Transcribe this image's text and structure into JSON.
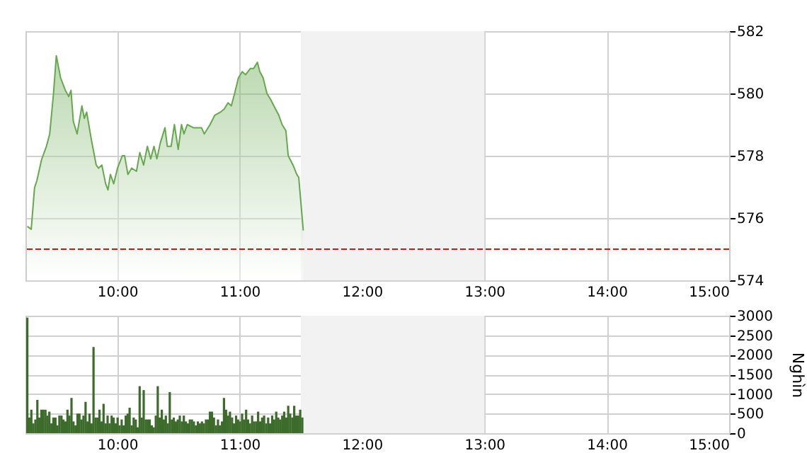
{
  "chart_data": [
    {
      "type": "area",
      "color": "#66a84e",
      "x": [
        9.265,
        9.297,
        9.324,
        9.343,
        9.382,
        9.421,
        9.448,
        9.479,
        9.502,
        9.537,
        9.576,
        9.603,
        9.622,
        9.641,
        9.672,
        9.711,
        9.731,
        9.75,
        9.789,
        9.828,
        9.847,
        9.874,
        9.905,
        9.924,
        9.944,
        9.971,
        10.002,
        10.041,
        10.06,
        10.087,
        10.118,
        10.157,
        10.184,
        10.215,
        10.246,
        10.273,
        10.3,
        10.324,
        10.351,
        10.39,
        10.409,
        10.44,
        10.467,
        10.498,
        10.525,
        10.545,
        10.572,
        10.622,
        10.661,
        10.688,
        10.711,
        10.758,
        10.797,
        10.843,
        10.874,
        10.905,
        10.932,
        10.959,
        10.99,
        11.021,
        11.048,
        11.087,
        11.114,
        11.145,
        11.165,
        11.192,
        11.223,
        11.254,
        11.293,
        11.32,
        11.347,
        11.378,
        11.397,
        11.436,
        11.467,
        11.483,
        11.52
      ],
      "values": [
        575.73,
        575.64,
        576.97,
        577.2,
        577.88,
        578.3,
        578.7,
        580.0,
        581.21,
        580.5,
        580.1,
        579.9,
        580.1,
        579.1,
        578.7,
        579.6,
        579.2,
        579.4,
        578.5,
        577.7,
        577.6,
        577.7,
        577.1,
        576.9,
        577.4,
        577.1,
        577.6,
        578.0,
        578.0,
        577.4,
        577.6,
        577.5,
        578.1,
        577.7,
        578.3,
        577.9,
        578.3,
        577.9,
        578.4,
        578.9,
        578.3,
        578.3,
        579.0,
        578.2,
        579.0,
        578.7,
        579.0,
        578.9,
        578.9,
        578.9,
        578.7,
        579.0,
        579.3,
        579.4,
        579.5,
        579.7,
        579.6,
        580.0,
        580.5,
        580.7,
        580.6,
        580.8,
        580.8,
        581.0,
        580.7,
        580.5,
        580.0,
        579.8,
        579.5,
        579.3,
        579.0,
        578.8,
        578.0,
        577.7,
        577.4,
        577.3,
        575.6
      ],
      "xlim": [
        9.25,
        15
      ],
      "xticks": [
        {
          "value": 10,
          "label": "10:00"
        },
        {
          "value": 11,
          "label": "11:00"
        },
        {
          "value": 12,
          "label": "12:00"
        },
        {
          "value": 13,
          "label": "13:00"
        },
        {
          "value": 14,
          "label": "14:00"
        },
        {
          "value": 15,
          "label": "15:00"
        }
      ],
      "ylim": [
        574,
        582
      ],
      "yticks": [
        574,
        576,
        578,
        580,
        582
      ],
      "grid": true,
      "ref_lines": [
        {
          "axis": "y",
          "value": 575,
          "color": "#ff0000",
          "line_style": "dashed"
        }
      ],
      "bands": [
        {
          "axis": "x",
          "from": 11.5,
          "to": 13,
          "color": "#f2f2f2"
        }
      ]
    },
    {
      "type": "bar",
      "color": "#3d6b2c",
      "ylabel": "Nghìn",
      "x": [
        9.265,
        9.281,
        9.298,
        9.314,
        9.331,
        9.347,
        9.363,
        9.38,
        9.396,
        9.413,
        9.429,
        9.445,
        9.462,
        9.478,
        9.495,
        9.511,
        9.527,
        9.544,
        9.56,
        9.577,
        9.593,
        9.609,
        9.626,
        9.642,
        9.659,
        9.675,
        9.691,
        9.708,
        9.724,
        9.741,
        9.757,
        9.773,
        9.79,
        9.806,
        9.823,
        9.839,
        9.855,
        9.872,
        9.888,
        9.905,
        9.921,
        9.937,
        9.954,
        9.97,
        9.987,
        10.003,
        10.019,
        10.036,
        10.052,
        10.069,
        10.085,
        10.101,
        10.118,
        10.134,
        10.151,
        10.167,
        10.183,
        10.2,
        10.216,
        10.233,
        10.249,
        10.265,
        10.282,
        10.298,
        10.315,
        10.331,
        10.347,
        10.364,
        10.38,
        10.397,
        10.413,
        10.429,
        10.446,
        10.462,
        10.479,
        10.495,
        10.511,
        10.528,
        10.544,
        10.561,
        10.577,
        10.593,
        10.61,
        10.626,
        10.643,
        10.659,
        10.675,
        10.692,
        10.708,
        10.725,
        10.741,
        10.757,
        10.774,
        10.79,
        10.807,
        10.823,
        10.839,
        10.856,
        10.872,
        10.889,
        10.905,
        10.921,
        10.938,
        10.954,
        10.971,
        10.987,
        11.003,
        11.02,
        11.036,
        11.053,
        11.069,
        11.085,
        11.102,
        11.118,
        11.135,
        11.151,
        11.167,
        11.184,
        11.2,
        11.217,
        11.233,
        11.249,
        11.266,
        11.282,
        11.299,
        11.315,
        11.331,
        11.348,
        11.364,
        11.381,
        11.397,
        11.413,
        11.43,
        11.446,
        11.463,
        11.479,
        11.495,
        11.512
      ],
      "values": [
        2950,
        400,
        600,
        250,
        350,
        850,
        400,
        600,
        600,
        600,
        450,
        550,
        250,
        400,
        400,
        200,
        450,
        450,
        350,
        300,
        600,
        450,
        900,
        300,
        200,
        500,
        500,
        350,
        450,
        800,
        300,
        500,
        250,
        2200,
        400,
        400,
        600,
        300,
        750,
        250,
        450,
        250,
        450,
        400,
        250,
        400,
        200,
        350,
        200,
        450,
        500,
        650,
        200,
        400,
        350,
        150,
        1200,
        400,
        1100,
        350,
        350,
        350,
        200,
        150,
        450,
        1200,
        400,
        600,
        350,
        450,
        250,
        1050,
        350,
        400,
        300,
        350,
        450,
        300,
        450,
        300,
        250,
        350,
        350,
        300,
        200,
        300,
        250,
        300,
        250,
        350,
        350,
        550,
        550,
        400,
        200,
        350,
        200,
        300,
        900,
        600,
        450,
        550,
        400,
        250,
        450,
        350,
        300,
        500,
        350,
        600,
        350,
        250,
        450,
        300,
        300,
        550,
        300,
        400,
        450,
        250,
        400,
        250,
        450,
        350,
        550,
        400,
        350,
        450,
        550,
        400,
        700,
        500,
        400,
        700,
        450,
        450,
        600,
        400
      ],
      "xlim": [
        9.25,
        15
      ],
      "xticks": [
        {
          "value": 10,
          "label": "10:00"
        },
        {
          "value": 11,
          "label": "11:00"
        },
        {
          "value": 12,
          "label": "12:00"
        },
        {
          "value": 13,
          "label": "13:00"
        },
        {
          "value": 14,
          "label": "14:00"
        },
        {
          "value": 15,
          "label": "15:00"
        }
      ],
      "ylim": [
        0,
        3000
      ],
      "yticks": [
        0,
        500,
        1000,
        1500,
        2000,
        2500,
        3000
      ],
      "grid": true,
      "bands": [
        {
          "axis": "x",
          "from": 11.5,
          "to": 13,
          "color": "#f2f2f2"
        }
      ]
    }
  ]
}
